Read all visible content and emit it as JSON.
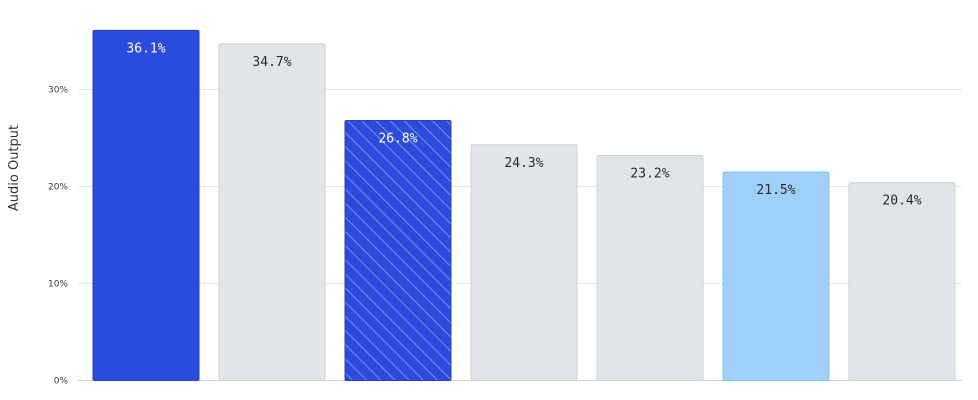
{
  "chart_data": {
    "type": "bar",
    "title": "",
    "xlabel": "",
    "ylabel": "Audio Output",
    "ylim": [
      0,
      40
    ],
    "yticks": [
      0,
      10,
      20,
      30
    ],
    "ytick_labels": [
      "0%",
      "10%",
      "20%",
      "30%"
    ],
    "grid": true,
    "legend": "none",
    "categories": [
      "",
      "",
      "",
      "",
      "",
      "",
      ""
    ],
    "values": [
      36.1,
      34.7,
      26.8,
      24.3,
      23.2,
      21.5,
      20.4
    ],
    "value_labels": [
      "36.1%",
      "34.7%",
      "26.8%",
      "24.3%",
      "23.2%",
      "21.5%",
      "20.4%"
    ],
    "bar_styles": [
      "solid-blue",
      "grey",
      "hatched-blue",
      "grey",
      "grey",
      "light-blue",
      "grey"
    ],
    "colors": {
      "solid_blue": "#2a4bdc",
      "light_blue": "#9fd0fb",
      "grey": "#e1e5ea",
      "grid": "#e6e8eb",
      "label_on_dark": "#ffffff",
      "label_on_light": "#2b2b2b"
    }
  }
}
